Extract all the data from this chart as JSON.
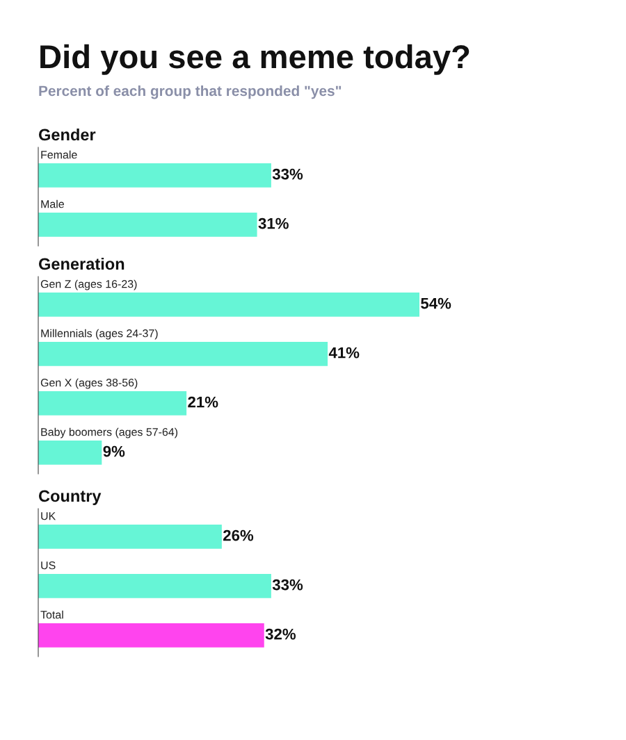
{
  "chart_data": [
    {
      "type": "other",
      "title": "Did you see a meme today?",
      "subtitle": "Percent of each group that responded \"yes\""
    },
    {
      "type": "bar",
      "orientation": "horizontal",
      "title": "Gender",
      "categories": [
        "Female",
        "Male"
      ],
      "values": [
        33,
        31
      ],
      "value_labels": [
        "33%",
        "31%"
      ],
      "colors": [
        "#66f5d6",
        "#66f5d6"
      ]
    },
    {
      "type": "bar",
      "orientation": "horizontal",
      "title": "Generation",
      "categories": [
        "Gen Z (ages 16-23)",
        "Millennials (ages 24-37)",
        "Gen X (ages 38-56)",
        "Baby boomers (ages 57-64)"
      ],
      "values": [
        54,
        41,
        21,
        9
      ],
      "value_labels": [
        "54%",
        "41%",
        "21%",
        "9%"
      ],
      "colors": [
        "#66f5d6",
        "#66f5d6",
        "#66f5d6",
        "#66f5d6"
      ]
    },
    {
      "type": "bar",
      "orientation": "horizontal",
      "title": "Country",
      "categories": [
        "UK",
        "US",
        "Total"
      ],
      "values": [
        26,
        33,
        32
      ],
      "value_labels": [
        "26%",
        "33%",
        "32%"
      ],
      "colors": [
        "#66f5d6",
        "#66f5d6",
        "#ff44ee"
      ]
    }
  ]
}
